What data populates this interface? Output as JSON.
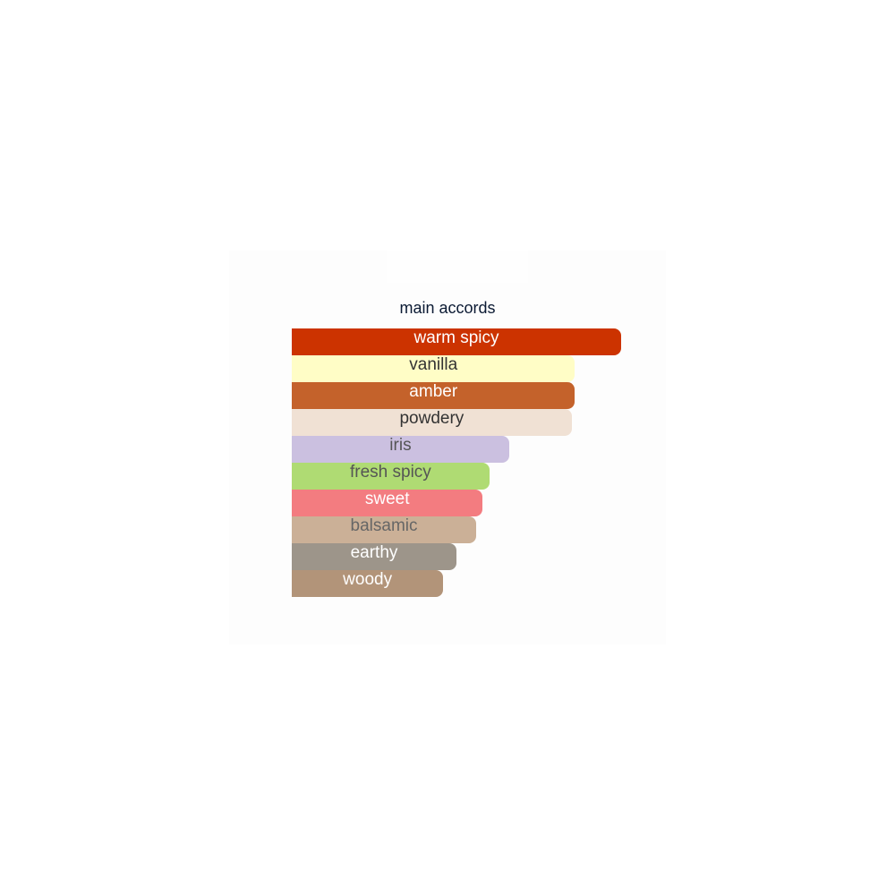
{
  "chart_data": {
    "type": "bar",
    "orientation": "horizontal",
    "title": "main accords",
    "categories": [
      "warm spicy",
      "vanilla",
      "amber",
      "powdery",
      "iris",
      "fresh spicy",
      "sweet",
      "balsamic",
      "earthy",
      "woody"
    ],
    "values": [
      100,
      86,
      86,
      85,
      66,
      60,
      58,
      56,
      50,
      46
    ],
    "colors": [
      "#cc3300",
      "#fffdc6",
      "#c4622b",
      "#f0e1d4",
      "#cbc0e0",
      "#afdb73",
      "#f37c80",
      "#cbb097",
      "#9d958a",
      "#b29479"
    ],
    "text_colors": [
      "#ffffff",
      "#333333",
      "#ffffff",
      "#333333",
      "#555555",
      "#555555",
      "#ffffff",
      "#666666",
      "#ffffff",
      "#ffffff"
    ],
    "axes_visible": false,
    "grid": false,
    "legend": "none"
  }
}
